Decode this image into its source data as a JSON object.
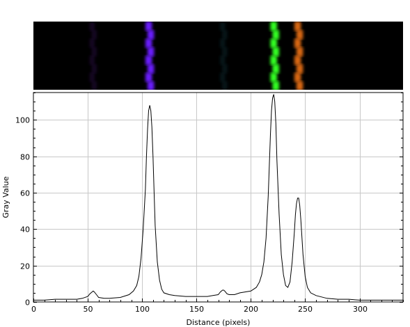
{
  "chart_data": {
    "type": "line",
    "xlabel": "Distance (pixels)",
    "ylabel": "Gray Value",
    "xlim": [
      0,
      340
    ],
    "ylim": [
      0,
      115
    ],
    "xticks": [
      0,
      50,
      100,
      150,
      200,
      250,
      300
    ],
    "yticks": [
      0,
      20,
      40,
      60,
      80,
      100
    ],
    "grid": true,
    "spectrum_bands": [
      {
        "center": 55,
        "width": 4,
        "color": "#2a0a44",
        "intensity": 0.5
      },
      {
        "center": 107,
        "width": 5,
        "color": "#6a1cff",
        "intensity": 1.0
      },
      {
        "center": 175,
        "width": 4,
        "color": "#0a2a30",
        "intensity": 0.5
      },
      {
        "center": 222,
        "width": 5,
        "color": "#33ff22",
        "intensity": 1.0
      },
      {
        "center": 244,
        "width": 5,
        "color": "#ff7a12",
        "intensity": 0.85
      }
    ],
    "series": [
      {
        "x": [
          0,
          10,
          20,
          30,
          40,
          45,
          50,
          52,
          54,
          55,
          56,
          58,
          60,
          65,
          70,
          80,
          88,
          92,
          95,
          97,
          99,
          101,
          103,
          104,
          105,
          106,
          107,
          108,
          109,
          110,
          111,
          112,
          114,
          116,
          118,
          120,
          125,
          130,
          140,
          150,
          160,
          165,
          170,
          172,
          174,
          175,
          176,
          178,
          180,
          185,
          190,
          200,
          205,
          208,
          210,
          212,
          214,
          216,
          217,
          218,
          219,
          220,
          221,
          222,
          223,
          224,
          226,
          228,
          230,
          232,
          234,
          236,
          238,
          240,
          241,
          242,
          243,
          244,
          245,
          246,
          248,
          250,
          252,
          255,
          260,
          270,
          280,
          290,
          300,
          310,
          320,
          330,
          340
        ],
        "values": [
          1,
          1,
          1.5,
          1.5,
          1.5,
          2,
          3,
          4.5,
          5.5,
          6,
          5.5,
          4,
          2.5,
          2,
          2,
          2.5,
          4,
          6,
          9,
          14,
          24,
          40,
          62,
          80,
          95,
          105,
          108,
          105,
          96,
          80,
          60,
          42,
          22,
          12,
          7,
          5,
          4,
          3.5,
          3,
          3,
          3,
          3.5,
          4,
          5.5,
          6.5,
          6.5,
          6,
          4.5,
          4,
          4,
          5,
          6,
          8,
          11,
          15,
          22,
          35,
          58,
          75,
          92,
          105,
          112,
          114,
          110,
          98,
          78,
          48,
          26,
          15,
          9,
          8,
          11,
          22,
          38,
          48,
          54,
          57,
          57,
          53,
          45,
          26,
          14,
          8,
          5,
          3.5,
          2,
          1.5,
          1.5,
          1,
          1,
          1,
          1,
          1
        ]
      }
    ]
  }
}
